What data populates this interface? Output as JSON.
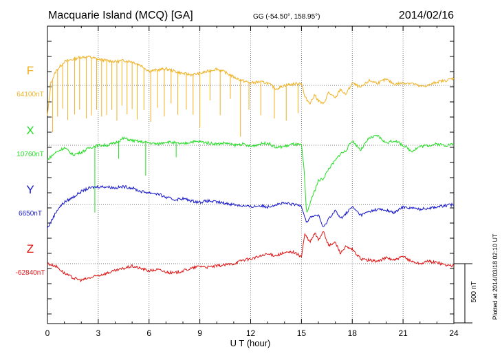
{
  "header": {
    "station": "Macquarie Island (MCQ)  [GA]",
    "coords": "GG (-54.50°, 158.95°)",
    "date": "2014/02/16"
  },
  "footer": {
    "plotted": "Plotted at 2014/03/18 02:10 UT",
    "scale_label": "500 nT"
  },
  "chart_data": {
    "type": "line",
    "xlabel": "U T (hour)",
    "xlim": [
      0,
      24
    ],
    "xticks": [
      0,
      3,
      6,
      9,
      12,
      15,
      18,
      21,
      24
    ],
    "xtick_labels": [
      "0",
      "3",
      "6",
      "9",
      "12",
      "15",
      "18",
      "21",
      "24"
    ],
    "y_unit": "nT",
    "scale_bar_nT": 500,
    "grid": "dotted",
    "series": [
      {
        "name": "F",
        "baseline_label": "64100nT",
        "baseline_nT": 64100,
        "color": "#f0b020",
        "x": [
          0,
          0.2,
          0.5,
          1,
          1.5,
          2,
          2.5,
          3,
          3.5,
          4,
          4.5,
          5,
          5.5,
          6,
          6.5,
          7,
          7.5,
          8,
          8.5,
          9,
          9.5,
          10,
          10.5,
          11,
          11.5,
          12,
          12.5,
          13,
          13.5,
          14,
          14.5,
          15,
          15.2,
          15.5,
          15.8,
          16,
          16.3,
          16.6,
          17,
          17.3,
          17.6,
          18,
          18.5,
          19,
          19.5,
          20,
          20.5,
          21,
          21.5,
          22,
          22.5,
          23,
          23.5,
          24
        ],
        "values": [
          -260,
          20,
          120,
          200,
          220,
          240,
          240,
          220,
          210,
          200,
          210,
          200,
          170,
          120,
          130,
          140,
          120,
          100,
          90,
          100,
          120,
          140,
          110,
          70,
          40,
          20,
          30,
          20,
          -30,
          0,
          10,
          20,
          -100,
          -150,
          -80,
          -130,
          -160,
          -60,
          -110,
          -30,
          -80,
          20,
          -20,
          40,
          20,
          50,
          10,
          20,
          20,
          -10,
          0,
          30,
          40,
          60
        ],
        "spikes": [
          [
            0.3,
            -450
          ],
          [
            0.6,
            -400
          ],
          [
            0.9,
            -380
          ],
          [
            1.2,
            -500
          ],
          [
            1.6,
            -470
          ],
          [
            1.9,
            -440
          ],
          [
            2.3,
            -520
          ],
          [
            2.6,
            -490
          ],
          [
            2.9,
            -430
          ],
          [
            3.2,
            -480
          ],
          [
            3.5,
            -460
          ],
          [
            3.8,
            -410
          ],
          [
            4.1,
            -500
          ],
          [
            4.4,
            -380
          ],
          [
            4.7,
            -450
          ],
          [
            5.0,
            -400
          ],
          [
            5.3,
            -470
          ],
          [
            5.7,
            -360
          ],
          [
            6.1,
            -430
          ],
          [
            6.5,
            -320
          ],
          [
            6.9,
            -400
          ],
          [
            7.3,
            -280
          ],
          [
            7.7,
            -360
          ],
          [
            8.2,
            -300
          ],
          [
            8.6,
            -340
          ],
          [
            9.0,
            -460
          ],
          [
            9.6,
            -250
          ],
          [
            10.2,
            -380
          ],
          [
            10.8,
            -200
          ],
          [
            11.4,
            -480
          ],
          [
            11.9,
            -230
          ],
          [
            12.6,
            -280
          ],
          [
            13.4,
            -260
          ],
          [
            14.1,
            -300
          ],
          [
            14.8,
            -250
          ]
        ]
      },
      {
        "name": "X",
        "baseline_label": "10760nT",
        "baseline_nT": 10760,
        "color": "#22dd22",
        "x": [
          0,
          0.5,
          1,
          1.5,
          2,
          2.5,
          3,
          3.5,
          4,
          4.5,
          5,
          5.5,
          6,
          6.5,
          7,
          7.5,
          8,
          8.5,
          9,
          9.5,
          10,
          10.5,
          11,
          11.5,
          12,
          12.5,
          13,
          13.5,
          14,
          14.5,
          15,
          15.15,
          15.3,
          15.6,
          16,
          16.3,
          16.6,
          17,
          17.3,
          17.6,
          18,
          18.5,
          19,
          19.5,
          20,
          20.5,
          21,
          21.5,
          22,
          22.5,
          23,
          23.5,
          24
        ],
        "values": [
          -120,
          -60,
          -20,
          -80,
          -60,
          -20,
          0,
          0,
          20,
          60,
          40,
          30,
          20,
          10,
          30,
          20,
          10,
          30,
          30,
          20,
          10,
          20,
          0,
          10,
          -10,
          10,
          20,
          -20,
          -10,
          10,
          0,
          -200,
          -580,
          -450,
          -300,
          -280,
          -200,
          -130,
          -70,
          -50,
          40,
          -40,
          60,
          80,
          20,
          40,
          0,
          -50,
          -10,
          0,
          10,
          0,
          10
        ],
        "spikes": [
          [
            2.8,
            -560
          ],
          [
            5.8,
            -280
          ],
          [
            4.2,
            -150
          ],
          [
            7.6,
            -120
          ]
        ]
      },
      {
        "name": "Y",
        "baseline_label": "6650nT",
        "baseline_nT": 6650,
        "color": "#1616cc",
        "x": [
          0,
          0.3,
          0.6,
          1,
          1.5,
          2,
          2.5,
          3,
          3.5,
          4,
          4.5,
          5,
          5.5,
          6,
          6.5,
          7,
          7.5,
          8,
          8.5,
          9,
          9.5,
          10,
          10.5,
          11,
          11.5,
          12,
          12.5,
          13,
          13.5,
          14,
          14.5,
          15,
          15.3,
          15.6,
          16,
          16.3,
          16.6,
          17,
          17.3,
          17.6,
          18,
          18.5,
          19,
          19.5,
          20,
          20.5,
          21,
          21.5,
          22,
          22.5,
          23,
          23.5,
          24
        ],
        "values": [
          -200,
          -120,
          -40,
          20,
          60,
          110,
          140,
          150,
          150,
          140,
          150,
          140,
          110,
          100,
          90,
          60,
          40,
          50,
          30,
          20,
          30,
          20,
          10,
          0,
          -10,
          -20,
          -10,
          -20,
          0,
          10,
          0,
          -10,
          -150,
          -100,
          -90,
          -200,
          -120,
          -50,
          -120,
          -80,
          -20,
          -90,
          -60,
          -40,
          -50,
          -70,
          -20,
          -30,
          -40,
          -30,
          -20,
          -10,
          0
        ],
        "spikes": []
      },
      {
        "name": "Z",
        "baseline_label": "-62840nT",
        "baseline_nT": -62840,
        "color": "#e01010",
        "x": [
          0,
          0.5,
          1,
          1.5,
          2,
          2.5,
          3,
          3.5,
          4,
          4.5,
          5,
          5.5,
          6,
          6.5,
          7,
          7.5,
          8,
          8.5,
          9,
          9.5,
          10,
          10.5,
          11,
          11.5,
          12,
          12.5,
          13,
          13.5,
          14,
          14.5,
          15,
          15.2,
          15.5,
          15.8,
          16,
          16.3,
          16.6,
          17,
          17.3,
          17.6,
          18,
          18.5,
          19,
          19.5,
          20,
          20.5,
          21,
          21.5,
          22,
          22.5,
          23,
          23.5,
          24
        ],
        "values": [
          0,
          -20,
          -80,
          -120,
          -140,
          -120,
          -100,
          -80,
          -60,
          -40,
          -20,
          -40,
          -60,
          -50,
          -70,
          -80,
          -60,
          -40,
          -20,
          -30,
          -20,
          -10,
          0,
          30,
          40,
          60,
          80,
          70,
          90,
          100,
          60,
          250,
          180,
          260,
          200,
          280,
          150,
          180,
          90,
          140,
          120,
          40,
          30,
          20,
          50,
          30,
          60,
          20,
          0,
          20,
          10,
          -10,
          -20
        ],
        "spikes": []
      }
    ]
  }
}
